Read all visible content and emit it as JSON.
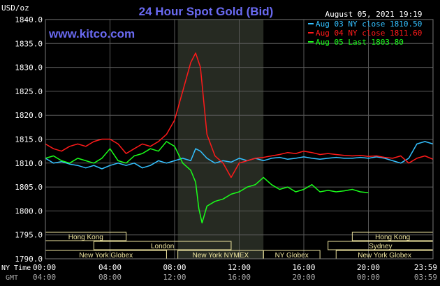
{
  "header": {
    "unit": "USD/oz",
    "title": "24 Hour Spot Gold (Bid)",
    "timestamp": "August 05, 2021 19:19",
    "watermark": "www.kitco.com"
  },
  "footer": {
    "ny_time_label": "NY Time",
    "gmt_label": "GMT",
    "ny_ticks": [
      "00:00",
      "04:00",
      "08:00",
      "12:00",
      "16:00",
      "20:00",
      "23:59"
    ],
    "gmt_ticks": [
      "04:00",
      "08:00",
      "12:00",
      "16:00",
      "20:00",
      "00:00",
      "03:59"
    ]
  },
  "sessions": [
    {
      "label": "Hong Kong",
      "row": 0,
      "start_hour": 0.0,
      "end_hour": 5.0
    },
    {
      "label": "Hong Kong",
      "row": 0,
      "start_hour": 19.0,
      "end_hour": 24.0
    },
    {
      "label": "London",
      "row": 1,
      "start_hour": 3.0,
      "end_hour": 11.5
    },
    {
      "label": "Sydney",
      "row": 1,
      "start_hour": 17.5,
      "end_hour": 24.0
    },
    {
      "label": "New York Globex",
      "row": 2,
      "start_hour": 0.0,
      "end_hour": 7.5
    },
    {
      "label": "New York NYMEX",
      "row": 2,
      "start_hour": 8.2,
      "end_hour": 13.5
    },
    {
      "label": "NY Globex",
      "row": 2,
      "start_hour": 13.5,
      "end_hour": 17.0
    },
    {
      "label": "New York Globex",
      "row": 2,
      "start_hour": 18.0,
      "end_hour": 24.0
    }
  ],
  "colors": {
    "background": "#000000",
    "grid": "#5a5a5a",
    "axis_text": "#ffffff",
    "title": "#6a6af2",
    "watermark": "#6a6af2",
    "highlight": "#262a22",
    "session_box": "#f0e6a0",
    "session_text": "#f0e6a0"
  },
  "chart_data": {
    "type": "line",
    "title": "24 Hour Spot Gold (Bid)",
    "ylabel": "USD/oz",
    "ylim": [
      1790.0,
      1840.0
    ],
    "yticks": [
      1790.0,
      1795.0,
      1800.0,
      1805.0,
      1810.0,
      1815.0,
      1820.0,
      1825.0,
      1830.0,
      1835.0,
      1840.0
    ],
    "xlim": [
      0,
      24
    ],
    "highlight_hours": [
      8.2,
      13.5
    ],
    "grid": true,
    "legend_position": "top-right",
    "series": [
      {
        "name": "Aug 03 NY close 1810.50",
        "color": "#33c0ff",
        "x": [
          0,
          0.5,
          1,
          1.5,
          2,
          2.5,
          3,
          3.5,
          4,
          4.5,
          5,
          5.5,
          6,
          6.5,
          7,
          7.5,
          8,
          8.5,
          9,
          9.3,
          9.6,
          10,
          10.5,
          11,
          11.5,
          12,
          12.5,
          13,
          13.5,
          14,
          14.5,
          15,
          15.5,
          16,
          16.5,
          17,
          17.5,
          18,
          18.5,
          19,
          19.5,
          20,
          20.5,
          21,
          21.5,
          22,
          22.5,
          23,
          23.5,
          24
        ],
        "y": [
          1811.0,
          1810.0,
          1810.3,
          1809.8,
          1809.5,
          1809.0,
          1809.5,
          1808.8,
          1809.5,
          1810.0,
          1809.5,
          1810.0,
          1809.0,
          1809.5,
          1810.5,
          1810.0,
          1810.5,
          1811.0,
          1810.5,
          1813.0,
          1812.5,
          1811.0,
          1810.0,
          1810.5,
          1810.2,
          1811.0,
          1810.5,
          1811.0,
          1810.5,
          1811.0,
          1811.2,
          1810.8,
          1811.0,
          1811.3,
          1811.0,
          1810.8,
          1811.0,
          1811.2,
          1811.0,
          1811.0,
          1811.2,
          1811.0,
          1811.3,
          1811.0,
          1810.5,
          1810.0,
          1811.0,
          1814.0,
          1814.5,
          1814.0
        ]
      },
      {
        "name": "Aug 04 NY close 1811.60",
        "color": "#ff1a1a",
        "x": [
          0,
          0.5,
          1,
          1.5,
          2,
          2.5,
          3,
          3.5,
          4,
          4.5,
          5,
          5.5,
          6,
          6.5,
          7,
          7.5,
          8,
          8.5,
          9,
          9.3,
          9.6,
          10,
          10.5,
          11,
          11.5,
          12,
          12.5,
          13,
          13.5,
          14,
          14.5,
          15,
          15.5,
          16,
          16.5,
          17,
          17.5,
          18,
          18.5,
          19,
          19.5,
          20,
          20.5,
          21,
          21.5,
          22,
          22.5,
          23,
          23.5,
          24
        ],
        "y": [
          1814.0,
          1813.0,
          1812.5,
          1813.5,
          1814.0,
          1813.5,
          1814.5,
          1815.0,
          1815.0,
          1814.0,
          1812.0,
          1813.0,
          1814.0,
          1813.5,
          1814.5,
          1816.0,
          1819.0,
          1825.0,
          1831.0,
          1833.0,
          1830.0,
          1816.0,
          1811.5,
          1810.0,
          1807.0,
          1810.0,
          1810.5,
          1811.0,
          1811.2,
          1811.5,
          1811.8,
          1812.2,
          1812.0,
          1812.5,
          1812.2,
          1811.8,
          1812.0,
          1811.8,
          1811.6,
          1811.5,
          1811.6,
          1811.4,
          1811.5,
          1811.2,
          1811.0,
          1811.5,
          1810.0,
          1811.0,
          1811.5,
          1810.8
        ]
      },
      {
        "name": "Aug 05 Last 1803.80",
        "color": "#1aff1a",
        "x": [
          0,
          0.5,
          1,
          1.5,
          2,
          2.5,
          3,
          3.5,
          4,
          4.5,
          5,
          5.5,
          6,
          6.5,
          7,
          7.5,
          8,
          8.5,
          9,
          9.3,
          9.5,
          9.7,
          10,
          10.5,
          11,
          11.5,
          12,
          12.5,
          13,
          13.5,
          14,
          14.5,
          15,
          15.5,
          16,
          16.5,
          17,
          17.5,
          18,
          18.5,
          19,
          19.5,
          20
        ],
        "y": [
          1811.0,
          1811.5,
          1810.5,
          1810.0,
          1811.0,
          1810.5,
          1810.0,
          1811.0,
          1813.0,
          1810.5,
          1810.0,
          1811.5,
          1812.0,
          1813.0,
          1812.5,
          1814.5,
          1813.5,
          1810.0,
          1808.5,
          1806.0,
          1800.5,
          1797.5,
          1801.0,
          1802.0,
          1802.5,
          1803.5,
          1804.0,
          1805.0,
          1805.5,
          1807.0,
          1805.5,
          1804.5,
          1805.0,
          1804.0,
          1804.5,
          1805.5,
          1804.0,
          1804.3,
          1804.0,
          1804.2,
          1804.5,
          1804.0,
          1803.8
        ]
      }
    ]
  }
}
